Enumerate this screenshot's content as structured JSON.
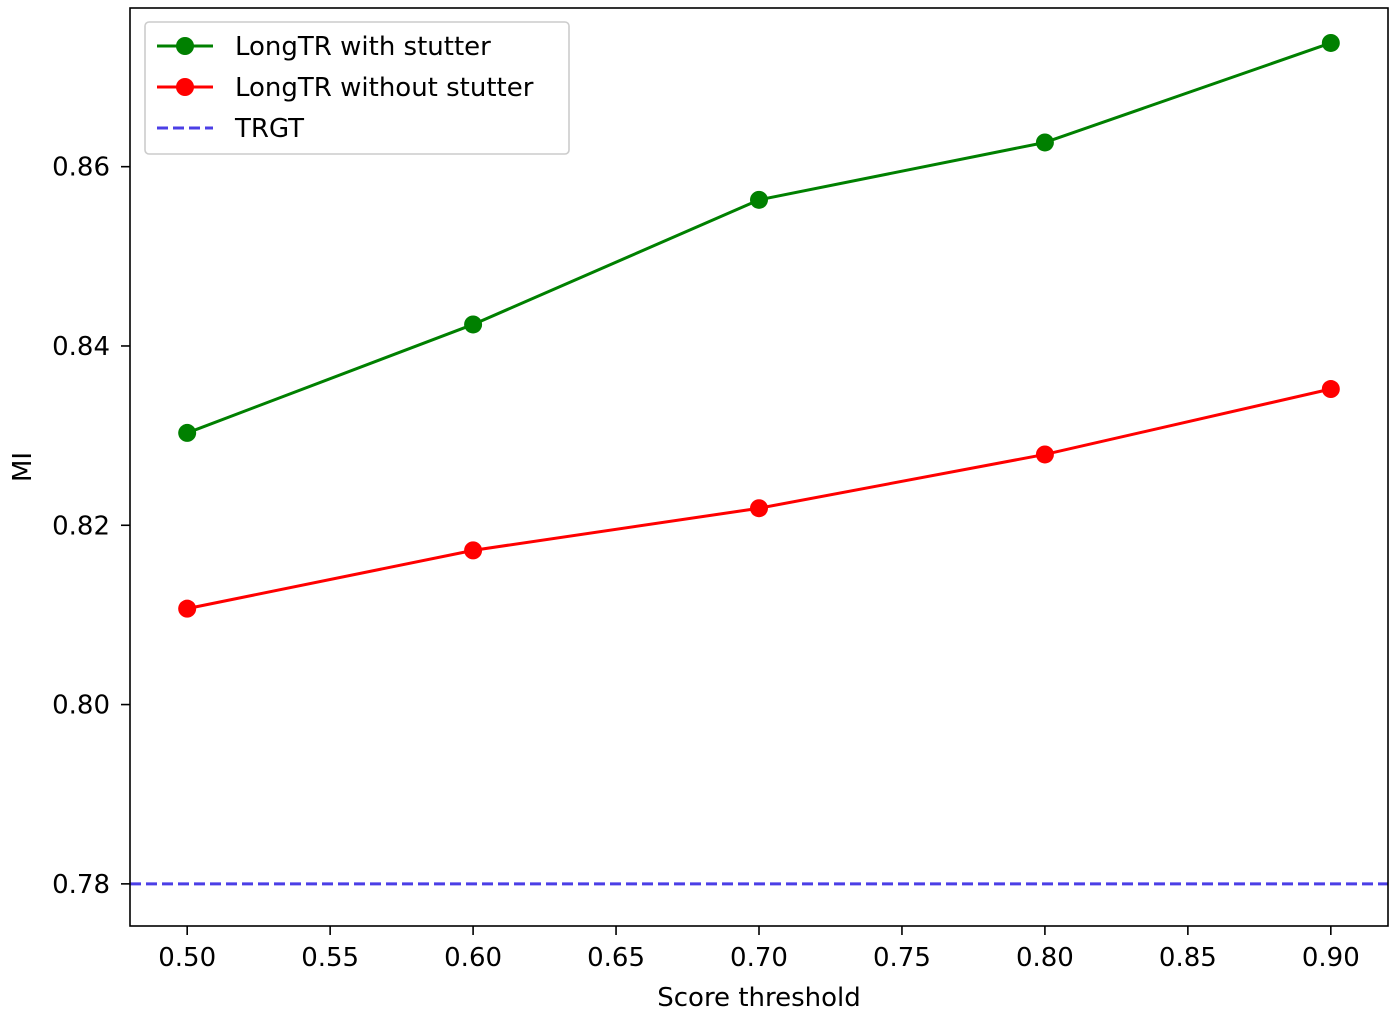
{
  "chart_data": {
    "type": "line",
    "title": "",
    "xlabel": "Score threshold",
    "ylabel": "MI",
    "xlim": [
      0.48,
      0.92
    ],
    "ylim": [
      0.7753,
      0.8777
    ],
    "x": [
      0.5,
      0.6,
      0.7,
      0.8,
      0.9
    ],
    "xticks": [
      0.5,
      0.55,
      0.6,
      0.65,
      0.7,
      0.75,
      0.8,
      0.85,
      0.9
    ],
    "xtick_labels": [
      "0.50",
      "0.55",
      "0.60",
      "0.65",
      "0.70",
      "0.75",
      "0.80",
      "0.85",
      "0.90"
    ],
    "yticks": [
      0.78,
      0.8,
      0.82,
      0.84,
      0.86
    ],
    "ytick_labels": [
      "0.78",
      "0.80",
      "0.82",
      "0.84",
      "0.86"
    ],
    "grid": false,
    "legend_position": "top-left",
    "series": [
      {
        "name": "LongTR with stutter",
        "color": "#008000",
        "style": "solid",
        "marker": "circle",
        "values": [
          0.8303,
          0.8424,
          0.8563,
          0.8627,
          0.8738
        ]
      },
      {
        "name": "LongTR without stutter",
        "color": "#ff0000",
        "style": "solid",
        "marker": "circle",
        "values": [
          0.8107,
          0.8172,
          0.8219,
          0.8279,
          0.8352
        ]
      }
    ],
    "reference_lines": [
      {
        "name": "TRGT",
        "color": "#4b3fe6",
        "style": "dashed",
        "y": 0.78
      }
    ]
  }
}
